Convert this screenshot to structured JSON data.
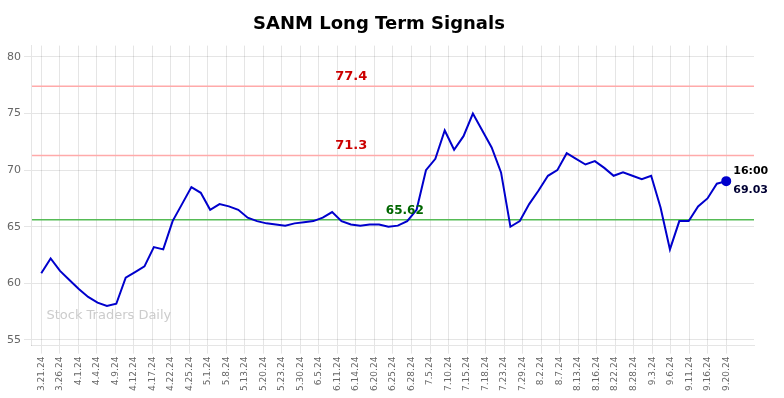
{
  "chart_data": {
    "type": "line",
    "title": "SANM Long Term Signals",
    "color": "#0000cc",
    "x": [
      0,
      0.5068,
      1.0137,
      1.5205,
      2.0274,
      2.5342,
      3.0411,
      3.5479,
      4.0548,
      4.5616,
      5.0685,
      5.5753,
      6.0822,
      6.589,
      7.0959,
      7.6027,
      8.1096,
      8.6164,
      9.1233,
      9.6301,
      10.137,
      10.6438,
      11.1507,
      11.6575,
      12.1644,
      12.6712,
      13.1781,
      13.6849,
      14.1918,
      14.6986,
      15.2055,
      15.7123,
      16.2192,
      16.726,
      17.2329,
      17.7397,
      18.2466,
      18.7534,
      19.2603,
      19.7671,
      20.274,
      20.7808,
      21.2877,
      21.7945,
      22.3014,
      22.8082,
      23.3151,
      23.8219,
      24.3288,
      24.8356,
      25.3425,
      25.8493,
      26.3562,
      26.863,
      27.3699,
      27.8767,
      28.3836,
      28.8904,
      29.3973,
      29.9041,
      30.411,
      30.9178,
      31.4247,
      31.9315,
      32.4384,
      32.9452,
      33.4521,
      33.9589,
      34.4658,
      34.9726,
      35.4795,
      35.9863,
      36.4932,
      37
    ],
    "values": [
      60.9,
      62.2,
      61.1,
      60.3,
      59.5,
      58.8,
      58.3,
      58.0,
      58.2,
      60.5,
      61.0,
      61.5,
      63.2,
      63.0,
      65.5,
      67.0,
      68.5,
      68.0,
      66.5,
      67.0,
      66.8,
      66.5,
      65.8,
      65.5,
      65.3,
      65.2,
      65.1,
      65.3,
      65.4,
      65.5,
      65.8,
      66.3,
      65.5,
      65.2,
      65.1,
      65.2,
      65.2,
      65.0,
      65.1,
      65.5,
      66.5,
      70.0,
      71.0,
      73.5,
      71.8,
      73.0,
      75.0,
      73.5,
      72.0,
      69.8,
      65.0,
      65.5,
      67.0,
      68.2,
      69.5,
      70.0,
      71.5,
      71.0,
      70.5,
      70.8,
      70.2,
      69.5,
      69.8,
      69.5,
      69.2,
      69.5,
      66.7,
      63.0,
      65.5,
      65.5,
      66.8,
      67.5,
      68.8,
      69.03
    ],
    "xlim": [
      -0.5,
      38.5
    ],
    "xticks": [
      {
        "value": 0,
        "label": "3.21.24"
      },
      {
        "value": 1,
        "label": "3.26.24"
      },
      {
        "value": 2,
        "label": "4.1.24"
      },
      {
        "value": 3,
        "label": "4.4.24"
      },
      {
        "value": 4,
        "label": "4.9.24"
      },
      {
        "value": 5,
        "label": "4.12.24"
      },
      {
        "value": 6,
        "label": "4.17.24"
      },
      {
        "value": 7,
        "label": "4.22.24"
      },
      {
        "value": 8,
        "label": "4.25.24"
      },
      {
        "value": 9,
        "label": "5.1.24"
      },
      {
        "value": 10,
        "label": "5.8.24"
      },
      {
        "value": 11,
        "label": "5.13.24"
      },
      {
        "value": 12,
        "label": "5.20.24"
      },
      {
        "value": 13,
        "label": "5.23.24"
      },
      {
        "value": 14,
        "label": "5.30.24"
      },
      {
        "value": 15,
        "label": "6.5.24"
      },
      {
        "value": 16,
        "label": "6.11.24"
      },
      {
        "value": 17,
        "label": "6.14.24"
      },
      {
        "value": 18,
        "label": "6.20.24"
      },
      {
        "value": 19,
        "label": "6.25.24"
      },
      {
        "value": 20,
        "label": "6.28.24"
      },
      {
        "value": 21,
        "label": "7.5.24"
      },
      {
        "value": 22,
        "label": "7.10.24"
      },
      {
        "value": 23,
        "label": "7.15.24"
      },
      {
        "value": 24,
        "label": "7.18.24"
      },
      {
        "value": 25,
        "label": "7.23.24"
      },
      {
        "value": 26,
        "label": "7.29.24"
      },
      {
        "value": 27,
        "label": "8.2.24"
      },
      {
        "value": 28,
        "label": "8.7.24"
      },
      {
        "value": 29,
        "label": "8.13.24"
      },
      {
        "value": 30,
        "label": "8.16.24"
      },
      {
        "value": 31,
        "label": "8.22.24"
      },
      {
        "value": 32,
        "label": "8.28.24"
      },
      {
        "value": 33,
        "label": "9.3.24"
      },
      {
        "value": 34,
        "label": "9.6.24"
      },
      {
        "value": 35,
        "label": "9.11.24"
      },
      {
        "value": 36,
        "label": "9.16.24"
      },
      {
        "value": 37,
        "label": "9.20.24"
      }
    ],
    "ylim": [
      54.5,
      81
    ],
    "yticks": [
      55,
      60,
      65,
      70,
      75,
      80
    ],
    "grid": true,
    "hlines": [
      {
        "value": 77.4,
        "label": "77.4",
        "color": "#ffaaaa",
        "label_color": "#cc0000"
      },
      {
        "value": 71.3,
        "label": "71.3",
        "color": "#ffaaaa",
        "label_color": "#cc0000"
      },
      {
        "value": 65.62,
        "label": "65.62",
        "color": "#55bb55",
        "label_color": "#006600"
      }
    ],
    "annotations": [
      "16:00",
      "69.03"
    ],
    "watermark": {
      "text": "Stock Traders Daily",
      "color": "#cccccc"
    }
  }
}
